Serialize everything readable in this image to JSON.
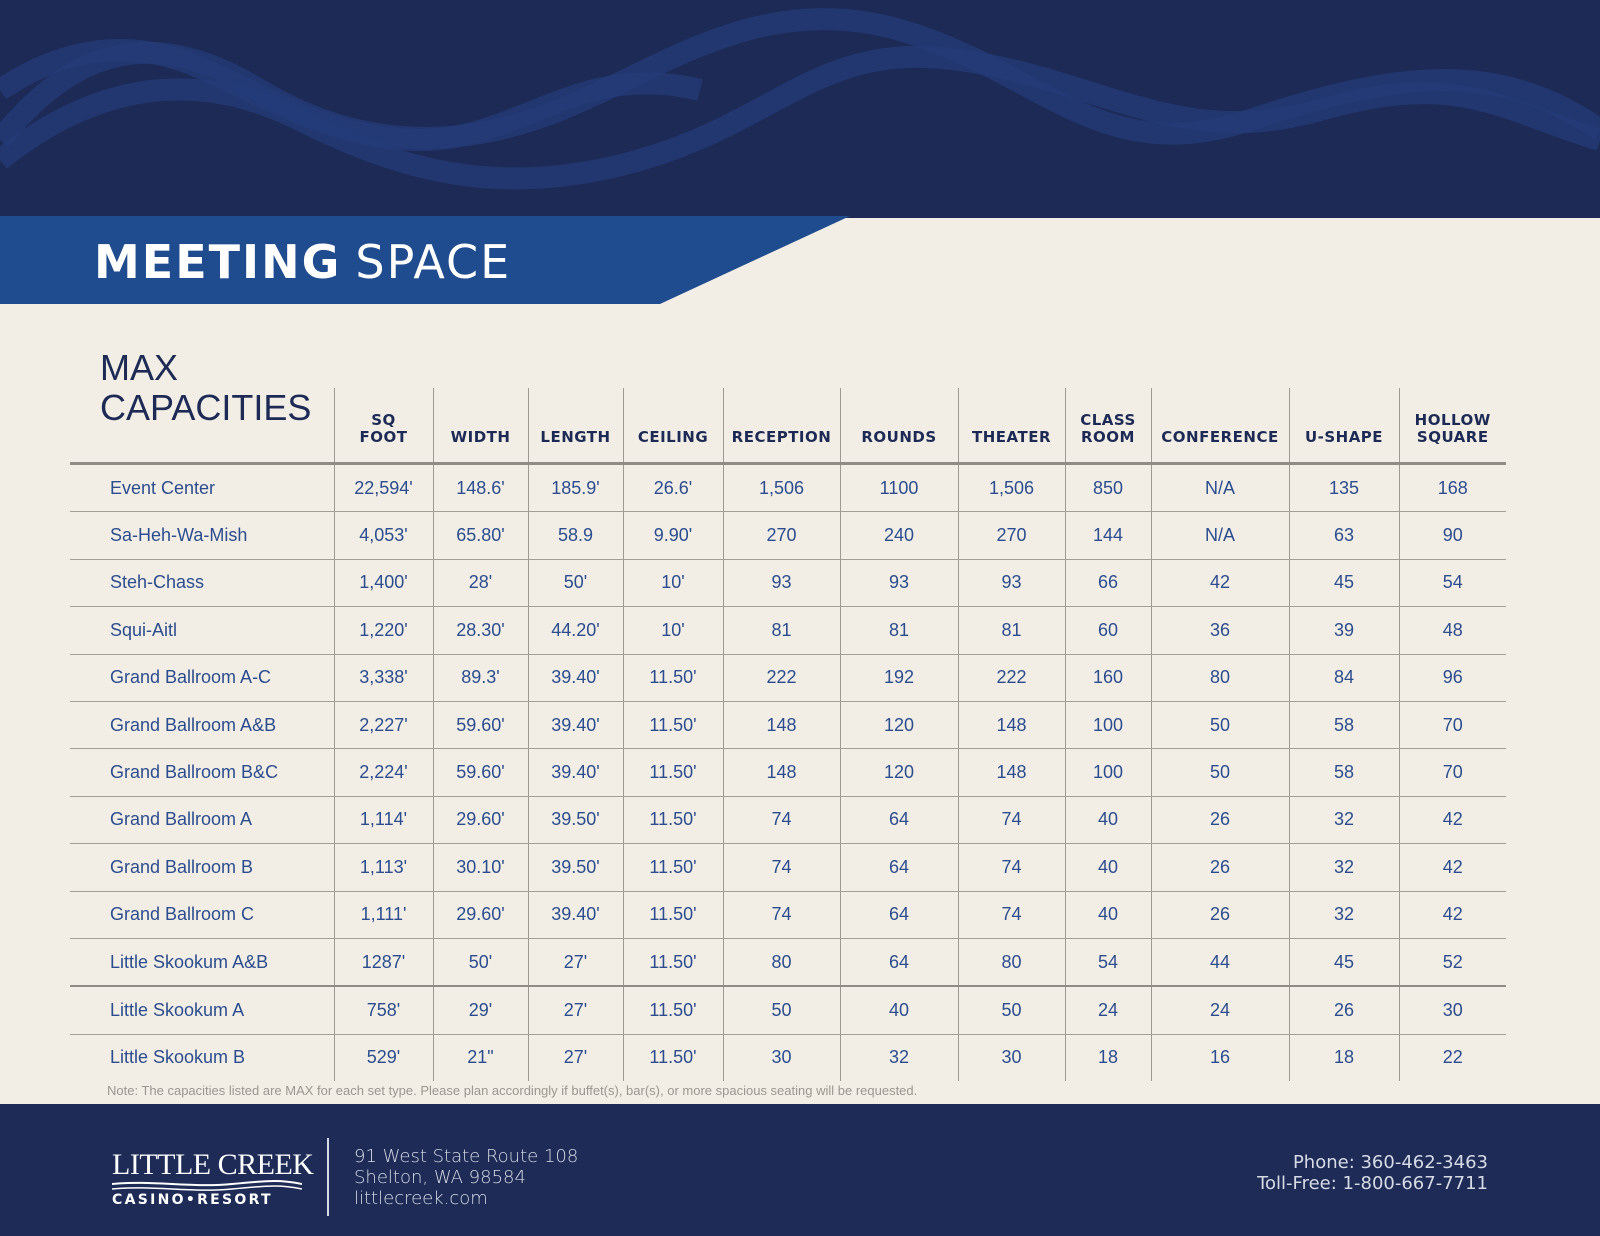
{
  "header": {
    "title_bold": "MEETING",
    "title_light": "SPACE"
  },
  "colors": {
    "navy": "#1c2a55",
    "band_blue": "#1f4b8f",
    "text_blue": "#2b4d8f",
    "paper": "#f2eee6"
  },
  "table": {
    "title_line1": "MAX",
    "title_line2": "CAPACITIES",
    "columns": [
      {
        "line1": "SQ",
        "line2": "FOOT"
      },
      {
        "line1": "",
        "line2": "WIDTH"
      },
      {
        "line1": "",
        "line2": "LENGTH"
      },
      {
        "line1": "",
        "line2": "CEILING"
      },
      {
        "line1": "",
        "line2": "RECEPTION"
      },
      {
        "line1": "",
        "line2": "ROUNDS"
      },
      {
        "line1": "",
        "line2": "THEATER"
      },
      {
        "line1": "CLASS",
        "line2": "ROOM"
      },
      {
        "line1": "",
        "line2": "CONFERENCE"
      },
      {
        "line1": "",
        "line2": "U-SHAPE"
      },
      {
        "line1": "HOLLOW",
        "line2": "SQUARE"
      }
    ],
    "rows": [
      {
        "name": "Event Center",
        "values": [
          "22,594'",
          "148.6'",
          "185.9'",
          "26.6'",
          "1,506",
          "1100",
          "1,506",
          "850",
          "N/A",
          "135",
          "168"
        ]
      },
      {
        "name": "Sa-Heh-Wa-Mish",
        "values": [
          "4,053'",
          "65.80'",
          "58.9",
          "9.90'",
          "270",
          "240",
          "270",
          "144",
          "N/A",
          "63",
          "90"
        ]
      },
      {
        "name": "Steh-Chass",
        "values": [
          "1,400'",
          "28'",
          "50'",
          "10'",
          "93",
          "93",
          "93",
          "66",
          "42",
          "45",
          "54"
        ]
      },
      {
        "name": "Squi-Aitl",
        "values": [
          "1,220'",
          "28.30'",
          "44.20'",
          "10'",
          "81",
          "81",
          "81",
          "60",
          "36",
          "39",
          "48"
        ]
      },
      {
        "name": "Grand Ballroom A-C",
        "values": [
          "3,338'",
          "89.3'",
          "39.40'",
          "11.50'",
          "222",
          "192",
          "222",
          "160",
          "80",
          "84",
          "96"
        ]
      },
      {
        "name": "Grand Ballroom A&B",
        "values": [
          "2,227'",
          "59.60'",
          "39.40'",
          "11.50'",
          "148",
          "120",
          "148",
          "100",
          "50",
          "58",
          "70"
        ]
      },
      {
        "name": "Grand Ballroom B&C",
        "values": [
          "2,224'",
          "59.60'",
          "39.40'",
          "11.50'",
          "148",
          "120",
          "148",
          "100",
          "50",
          "58",
          "70"
        ]
      },
      {
        "name": "Grand Ballroom A",
        "values": [
          "1,114'",
          "29.60'",
          "39.50'",
          "11.50'",
          "74",
          "64",
          "74",
          "40",
          "26",
          "32",
          "42"
        ]
      },
      {
        "name": "Grand Ballroom B",
        "values": [
          "1,113'",
          "30.10'",
          "39.50'",
          "11.50'",
          "74",
          "64",
          "74",
          "40",
          "26",
          "32",
          "42"
        ]
      },
      {
        "name": "Grand Ballroom C",
        "values": [
          "1,111'",
          "29.60'",
          "39.40'",
          "11.50'",
          "74",
          "64",
          "74",
          "40",
          "26",
          "32",
          "42"
        ]
      },
      {
        "name": "Little Skookum A&B",
        "values": [
          "1287'",
          "50'",
          "27'",
          "11.50'",
          "80",
          "64",
          "80",
          "54",
          "44",
          "45",
          "52"
        ]
      },
      {
        "name": "Little Skookum A",
        "values": [
          "758'",
          "29'",
          "27'",
          "11.50'",
          "50",
          "40",
          "50",
          "24",
          "24",
          "26",
          "30"
        ]
      },
      {
        "name": "Little Skookum B",
        "values": [
          "529'",
          "21\"",
          "27'",
          "11.50'",
          "30",
          "32",
          "30",
          "18",
          "16",
          "18",
          "22"
        ]
      }
    ],
    "note": "Note: The capacities listed are MAX for each set type.  Please plan accordingly if buffet(s), bar(s), or more spacious seating will be requested."
  },
  "footer": {
    "logo_top": "LITTLE CREEK",
    "logo_bottom": "CASINO•RESORT",
    "address_line1": "91 West State Route 108",
    "address_line2": "Shelton, WA 98584",
    "website": "littlecreek.com",
    "phone": "Phone: 360-462-3463",
    "toll_free": "Toll-Free: 1-800-667-7711"
  }
}
